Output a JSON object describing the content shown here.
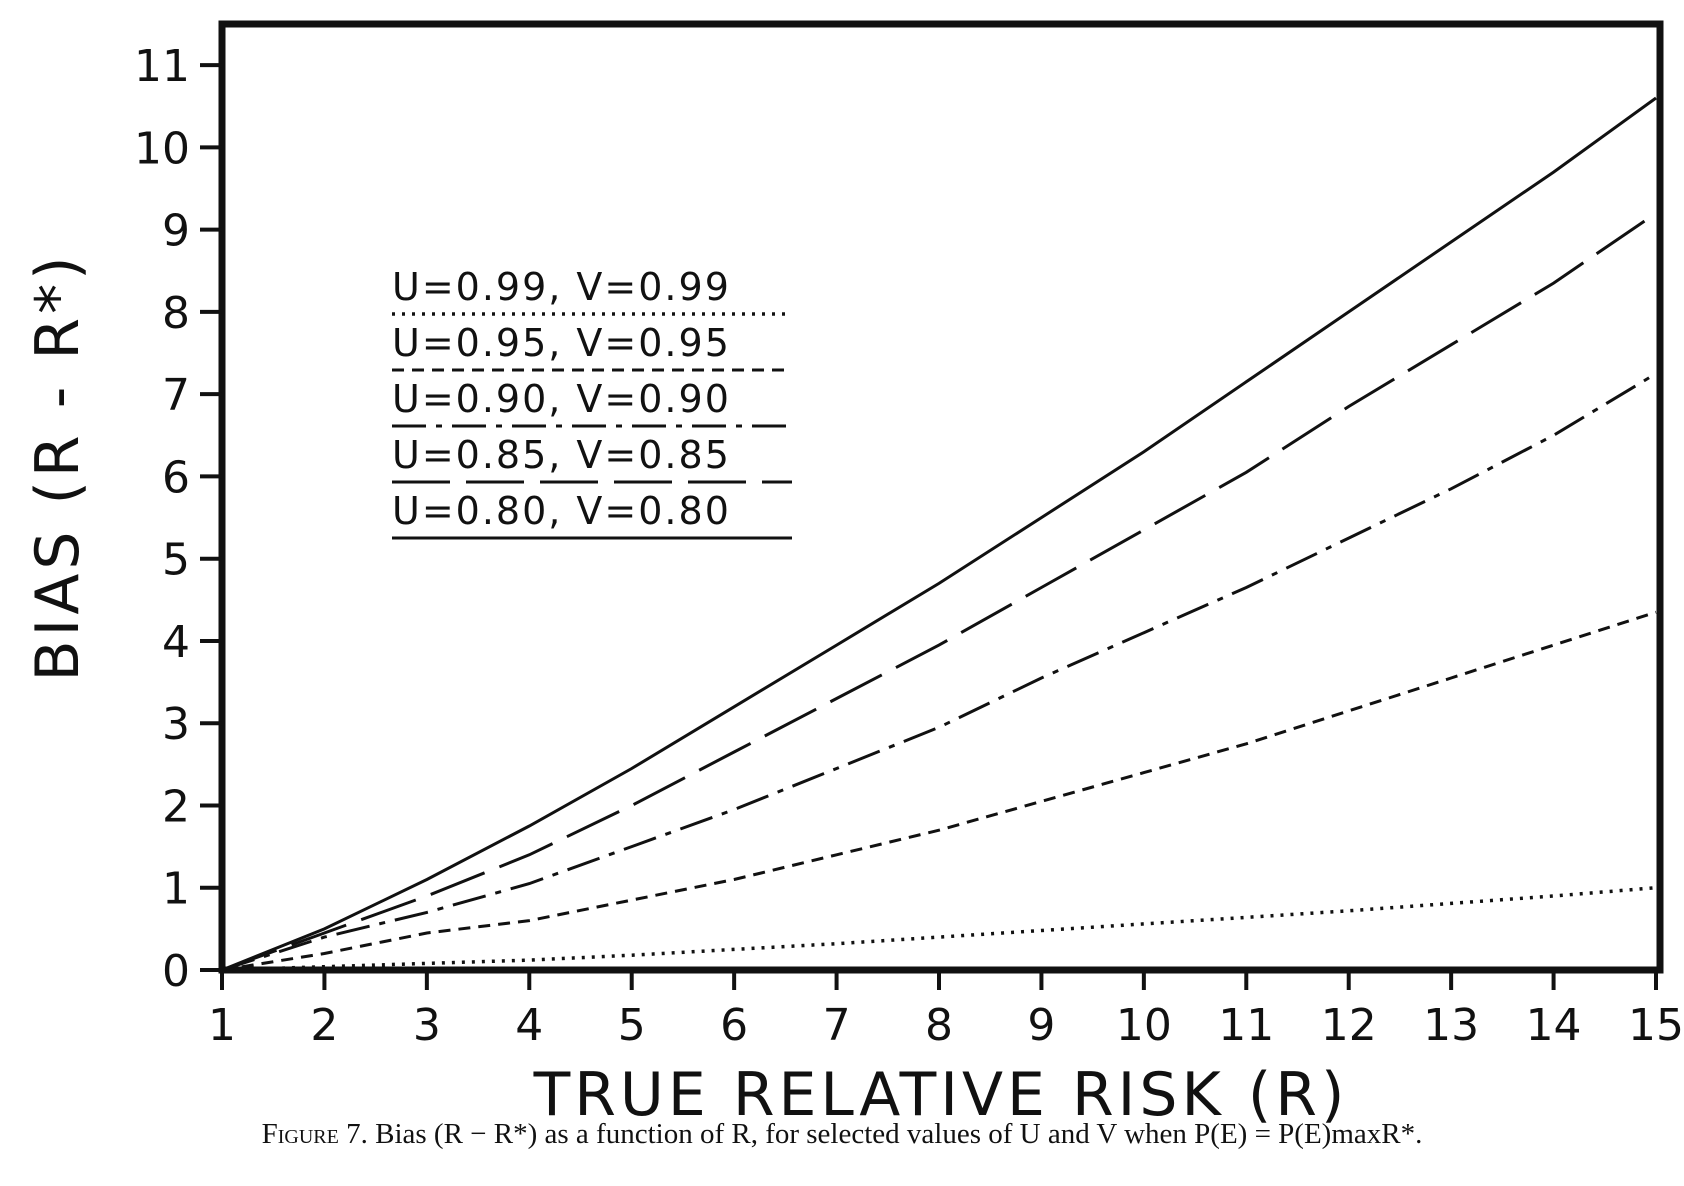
{
  "chart_data": {
    "type": "line",
    "xlabel": "TRUE RELATIVE RISK (R)",
    "ylabel": "BIAS (R - R*)",
    "xlim": [
      1,
      15
    ],
    "ylim": [
      0,
      11.5
    ],
    "xticks": [
      1,
      2,
      3,
      4,
      5,
      6,
      7,
      8,
      9,
      10,
      11,
      12,
      13,
      14,
      15
    ],
    "yticks": [
      0,
      1,
      2,
      3,
      4,
      5,
      6,
      7,
      8,
      9,
      10,
      11
    ],
    "grid": false,
    "legend_position": "upper-left",
    "series": [
      {
        "name": "U=0.99, V=0.99",
        "style": "dotted",
        "x": [
          1,
          2,
          3,
          4,
          5,
          6,
          7,
          8,
          9,
          10,
          11,
          12,
          13,
          14,
          15
        ],
        "y": [
          0,
          0.04,
          0.08,
          0.12,
          0.18,
          0.25,
          0.32,
          0.4,
          0.48,
          0.56,
          0.64,
          0.72,
          0.81,
          0.9,
          1.0
        ]
      },
      {
        "name": "U=0.95, V=0.95",
        "style": "dashed",
        "x": [
          1,
          2,
          3,
          4,
          5,
          6,
          7,
          8,
          9,
          10,
          11,
          12,
          13,
          14,
          15
        ],
        "y": [
          0,
          0.2,
          0.45,
          0.6,
          0.85,
          1.1,
          1.4,
          1.7,
          2.05,
          2.4,
          2.75,
          3.15,
          3.55,
          3.95,
          4.35
        ]
      },
      {
        "name": "U=0.90, V=0.90",
        "style": "dash-dot",
        "x": [
          1,
          2,
          3,
          4,
          5,
          6,
          7,
          8,
          9,
          10,
          11,
          12,
          13,
          14,
          15
        ],
        "y": [
          0,
          0.4,
          0.7,
          1.05,
          1.5,
          1.95,
          2.45,
          2.95,
          3.55,
          4.1,
          4.65,
          5.25,
          5.85,
          6.5,
          7.25
        ]
      },
      {
        "name": "U=0.85, V=0.85",
        "style": "long-dash",
        "x": [
          1,
          2,
          3,
          4,
          5,
          6,
          7,
          8,
          9,
          10,
          11,
          12,
          13,
          14,
          15
        ],
        "y": [
          0,
          0.45,
          0.9,
          1.4,
          2.0,
          2.65,
          3.3,
          3.95,
          4.65,
          5.35,
          6.05,
          6.85,
          7.6,
          8.35,
          9.2
        ]
      },
      {
        "name": "U=0.80, V=0.80",
        "style": "solid",
        "x": [
          1,
          2,
          3,
          4,
          5,
          6,
          7,
          8,
          9,
          10,
          11,
          12,
          13,
          14,
          15
        ],
        "y": [
          0,
          0.5,
          1.1,
          1.75,
          2.45,
          3.2,
          3.95,
          4.7,
          5.5,
          6.3,
          7.15,
          8.0,
          8.85,
          9.7,
          10.6
        ]
      }
    ]
  },
  "caption": {
    "figure_number": "Figure 7.",
    "text": "Bias (R − R*) as a function of R, for selected values of U and V when P(E) = P(E)maxR*."
  }
}
